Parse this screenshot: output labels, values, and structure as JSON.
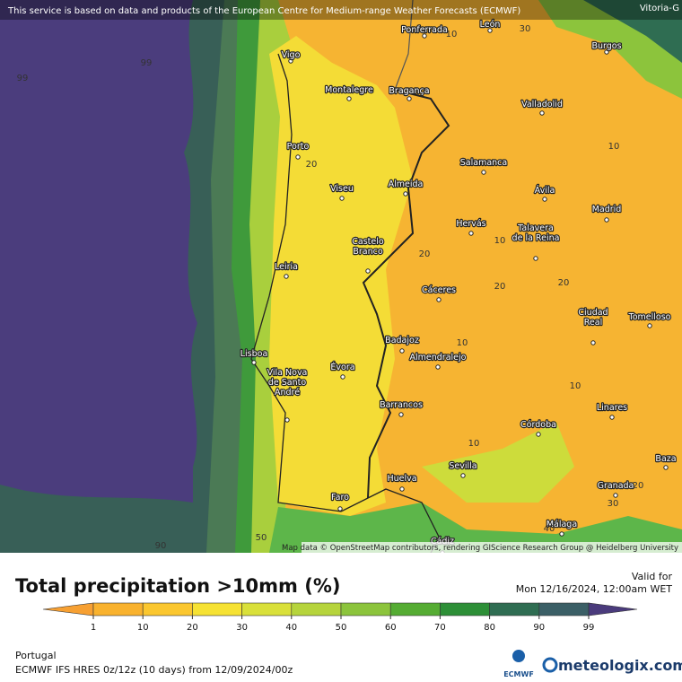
{
  "banner": "This service is based on data and products of the European Centre for Medium-range Weather Forecasts (ECMWF)",
  "corner_city": "Vitoria-G",
  "cities": [
    [
      "Ponferrada"
    ],
    [
      "León"
    ],
    [
      "Burgos"
    ],
    [
      "Vigo"
    ],
    [
      "Montalegre"
    ],
    [
      "Bragança"
    ],
    [
      "Valladolid"
    ],
    [
      "Porto"
    ],
    [
      "Salamanca"
    ],
    [
      "Viseu"
    ],
    [
      "Almeida"
    ],
    [
      "Ávila"
    ],
    [
      "Madrid"
    ],
    [
      "Hervás"
    ],
    [
      "Talavera",
      "de la Reina"
    ],
    [
      "Castelo",
      "Branco"
    ],
    [
      "Leiria"
    ],
    [
      "Cáceres"
    ],
    [
      "Ciudad",
      "Real"
    ],
    [
      "Tomelloso"
    ],
    [
      "Badajoz"
    ],
    [
      "Almendralejo"
    ],
    [
      "Lisboa"
    ],
    [
      "Évora"
    ],
    [
      "Vila Nova",
      "de Santo",
      "André"
    ],
    [
      "Barrancos"
    ],
    [
      "Córdoba"
    ],
    [
      "Linares"
    ],
    [
      "Sevilla"
    ],
    [
      "Huelva"
    ],
    [
      "Baza"
    ],
    [
      "Granada"
    ],
    [
      "Faro"
    ],
    [
      "Málaga"
    ],
    [
      "Cádiz"
    ]
  ],
  "contour_labels": [
    "99",
    "99",
    "20",
    "10",
    "10",
    "20",
    "20",
    "10",
    "20",
    "10",
    "10",
    "20",
    "30",
    "50",
    "90",
    "30",
    "40",
    "10"
  ],
  "attribution": "Map data © OpenStreetMap contributors, rendering GIScience Research Group @ Heidelberg University",
  "legend": {
    "title": "Total precipitation >10mm (%)",
    "valid_label": "Valid for",
    "valid_time": "Mon 12/16/2024, 12:00am WET",
    "ticks": [
      1,
      10,
      20,
      30,
      40,
      50,
      60,
      70,
      80,
      90,
      99
    ],
    "colors": [
      "#f7a032",
      "#f9b22e",
      "#fbc72f",
      "#f6e233",
      "#d9e03a",
      "#b6d43c",
      "#8cc43c",
      "#55ac33",
      "#2d8f37",
      "#2f6d52",
      "#3b5f66",
      "#4a3b7c"
    ]
  },
  "footer": {
    "region": "Portugal",
    "model": "ECMWF IFS HRES 0z/12z (10 days) from 12/09/2024/00z",
    "ecmwf_logo": "ECMWF",
    "brand": "meteologix.com"
  }
}
